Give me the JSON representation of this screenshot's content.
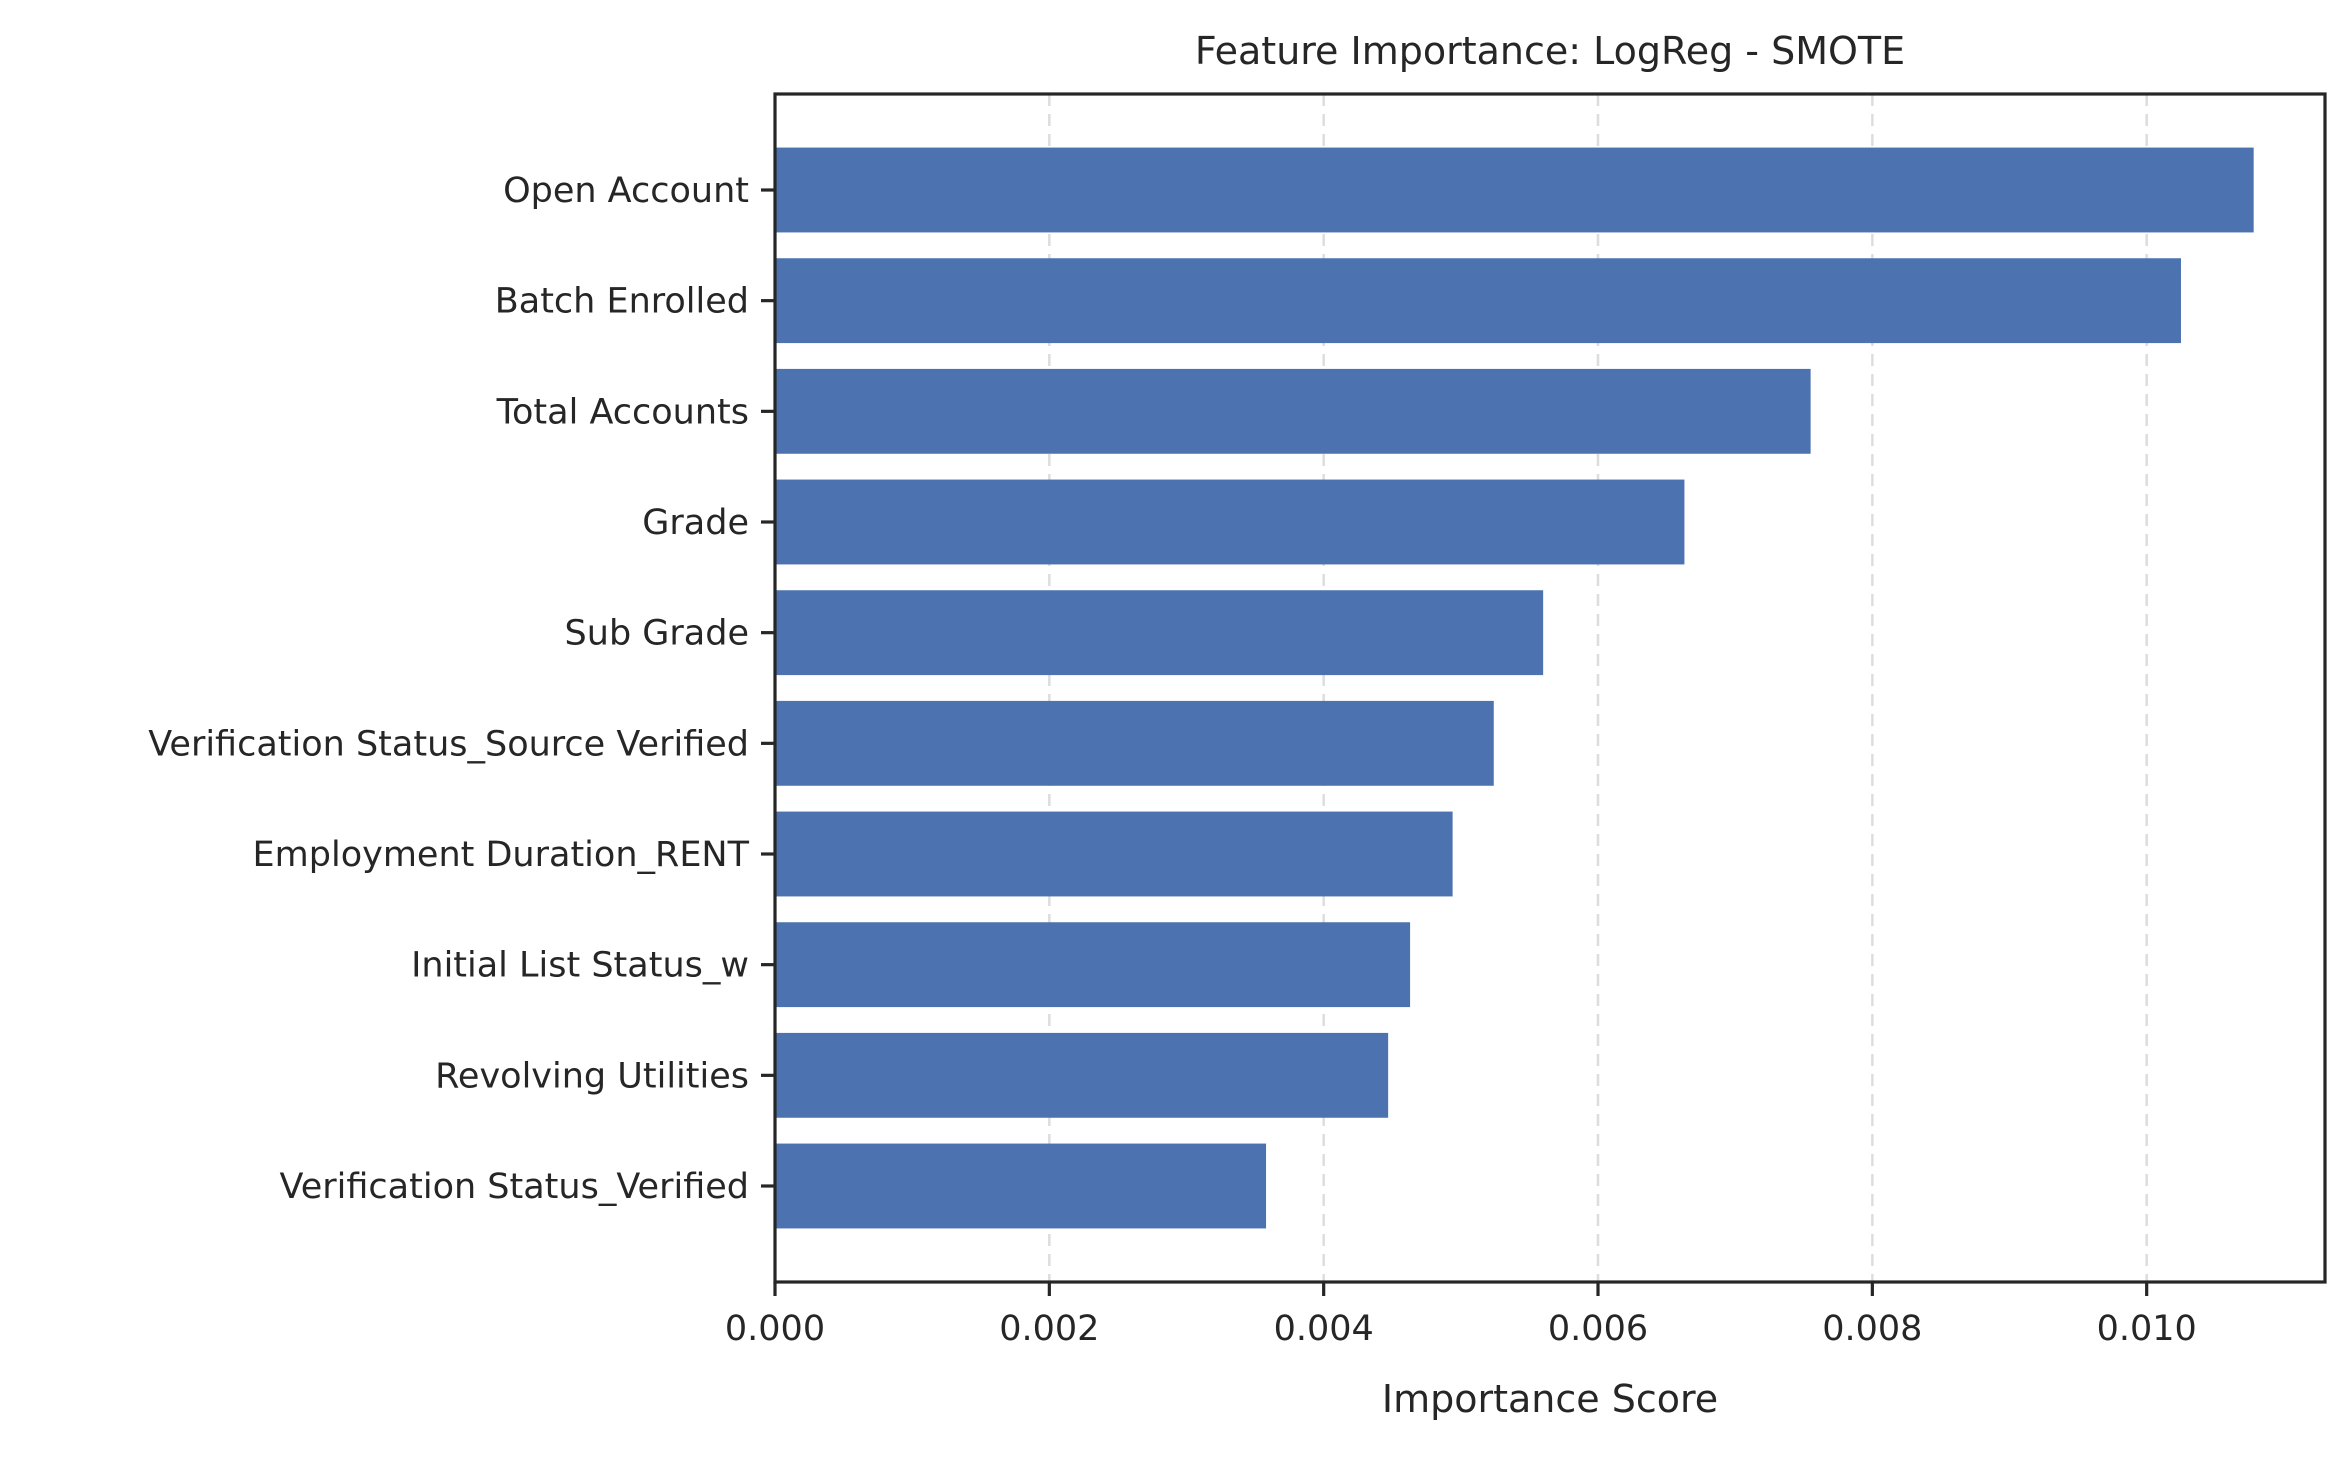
{
  "chart_data": {
    "type": "bar",
    "orientation": "horizontal",
    "title": "Feature Importance: LogReg - SMOTE",
    "xlabel": "Importance Score",
    "ylabel": "",
    "categories": [
      "Open Account",
      "Batch Enrolled",
      "Total Accounts",
      "Grade",
      "Sub Grade",
      "Verification Status_Source Verified",
      "Employment Duration_RENT",
      "Initial List Status_w",
      "Revolving Utilities",
      "Verification Status_Verified"
    ],
    "values": [
      0.01078,
      0.01025,
      0.00755,
      0.00663,
      0.0056,
      0.00524,
      0.00494,
      0.00463,
      0.00447,
      0.00358
    ],
    "xlim": [
      0,
      0.0113
    ],
    "xticks": [
      0,
      0.002,
      0.004,
      0.006,
      0.008,
      0.01
    ],
    "xtick_labels": [
      "0.000",
      "0.002",
      "0.004",
      "0.006",
      "0.008",
      "0.010"
    ],
    "grid": "x-dashed",
    "bar_color": "#4c72b0"
  }
}
